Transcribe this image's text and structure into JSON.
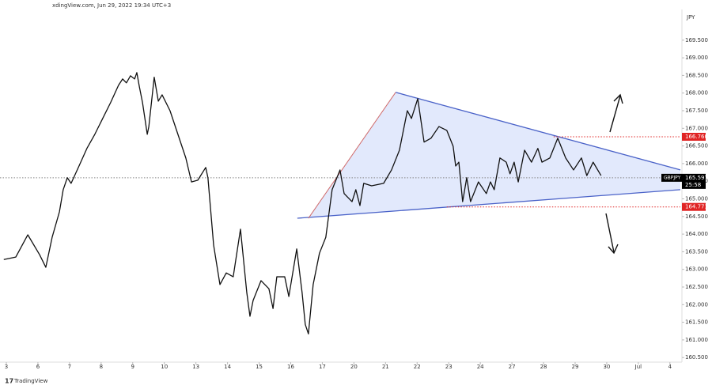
{
  "chart_data": {
    "type": "line",
    "header": "xdingView.com, Jun 29, 2022 19:34 UTC+3",
    "currency": "JPY",
    "brand": "TradingView",
    "xlim": [
      -0.2,
      21.33
    ],
    "xticks": [
      {
        "value": 0,
        "label": "3"
      },
      {
        "value": 1,
        "label": "6"
      },
      {
        "value": 2,
        "label": "7"
      },
      {
        "value": 3,
        "label": "8"
      },
      {
        "value": 4,
        "label": "9"
      },
      {
        "value": 5,
        "label": "10"
      },
      {
        "value": 6,
        "label": "13"
      },
      {
        "value": 7,
        "label": "14"
      },
      {
        "value": 8,
        "label": "15"
      },
      {
        "value": 9,
        "label": "16"
      },
      {
        "value": 10,
        "label": "17"
      },
      {
        "value": 11,
        "label": "20"
      },
      {
        "value": 12,
        "label": "21"
      },
      {
        "value": 13,
        "label": "22"
      },
      {
        "value": 14,
        "label": "23"
      },
      {
        "value": 15,
        "label": "24"
      },
      {
        "value": 16,
        "label": "27"
      },
      {
        "value": 17,
        "label": "28"
      },
      {
        "value": 18,
        "label": "29"
      },
      {
        "value": 19,
        "label": "30"
      },
      {
        "value": 20,
        "label": "Jul"
      },
      {
        "value": 21,
        "label": "4"
      }
    ],
    "ylim": [
      160.37,
      170.37
    ],
    "yticks": [
      {
        "value": 160.5,
        "label": "160.500"
      },
      {
        "value": 161,
        "label": "161.000"
      },
      {
        "value": 161.5,
        "label": "161.500"
      },
      {
        "value": 162,
        "label": "162.000"
      },
      {
        "value": 162.5,
        "label": "162.500"
      },
      {
        "value": 163,
        "label": "163.000"
      },
      {
        "value": 163.5,
        "label": "163.500"
      },
      {
        "value": 164,
        "label": "164.000"
      },
      {
        "value": 164.5,
        "label": "164.500"
      },
      {
        "value": 165,
        "label": "165.000"
      },
      {
        "value": 165.5,
        "label": "165.500"
      },
      {
        "value": 166,
        "label": "166.000"
      },
      {
        "value": 166.5,
        "label": "166.500"
      },
      {
        "value": 167,
        "label": "167.000"
      },
      {
        "value": 167.5,
        "label": "167.500"
      },
      {
        "value": 168,
        "label": "168.000"
      },
      {
        "value": 168.5,
        "label": "168.500"
      },
      {
        "value": 169,
        "label": "169.000"
      },
      {
        "value": 169.5,
        "label": "169.500"
      }
    ],
    "series": [
      {
        "name": "GBPJPY",
        "color": "#111111",
        "x": [
          -0.08,
          0.3,
          0.68,
          1.05,
          1.25,
          1.45,
          1.68,
          1.8,
          1.93,
          2.05,
          2.3,
          2.55,
          2.8,
          3.05,
          3.3,
          3.55,
          3.68,
          3.8,
          3.93,
          4.06,
          4.13,
          4.21,
          4.31,
          4.46,
          4.51,
          4.68,
          4.81,
          4.93,
          5.18,
          5.43,
          5.68,
          5.86,
          6.06,
          6.31,
          6.38,
          6.56,
          6.76,
          6.96,
          7.18,
          7.41,
          7.61,
          7.71,
          7.81,
          8.06,
          8.31,
          8.44,
          8.56,
          8.81,
          8.94,
          9.19,
          9.36,
          9.46,
          9.56,
          9.71,
          9.91,
          10.11,
          10.31,
          10.56,
          10.69,
          10.94,
          11.06,
          11.19,
          11.31,
          11.56,
          11.94,
          12.19,
          12.44,
          12.69,
          12.82,
          13.02,
          13.22,
          13.44,
          13.69,
          13.94,
          14.14,
          14.22,
          14.32,
          14.44,
          14.57,
          14.69,
          14.94,
          15.19,
          15.32,
          15.44,
          15.62,
          15.82,
          15.94,
          16.07,
          16.2,
          16.4,
          16.62,
          16.82,
          16.95,
          17.2,
          17.45,
          17.7,
          17.95,
          18.2,
          18.37,
          18.57,
          18.82
        ],
        "values": [
          163.28,
          163.35,
          163.98,
          163.42,
          163.06,
          163.91,
          164.63,
          165.26,
          165.6,
          165.44,
          165.93,
          166.43,
          166.83,
          167.28,
          167.73,
          168.22,
          168.4,
          168.29,
          168.49,
          168.4,
          168.58,
          168.18,
          167.73,
          166.83,
          167.05,
          168.45,
          167.77,
          167.95,
          167.5,
          166.83,
          166.16,
          165.48,
          165.53,
          165.89,
          165.6,
          163.69,
          162.57,
          162.9,
          162.79,
          164.14,
          162.34,
          161.67,
          162.12,
          162.68,
          162.45,
          161.89,
          162.79,
          162.79,
          162.23,
          163.58,
          162.34,
          161.44,
          161.17,
          162.57,
          163.46,
          163.91,
          165.26,
          165.82,
          165.15,
          164.92,
          165.26,
          164.81,
          165.44,
          165.37,
          165.44,
          165.82,
          166.38,
          167.5,
          167.28,
          167.84,
          166.61,
          166.72,
          167.05,
          166.94,
          166.49,
          165.93,
          166.04,
          164.92,
          165.6,
          164.92,
          165.48,
          165.15,
          165.48,
          165.26,
          166.16,
          166.04,
          165.71,
          166.04,
          165.48,
          166.38,
          166.04,
          166.43,
          166.04,
          166.16,
          166.72,
          166.16,
          165.82,
          166.16,
          165.66,
          166.04,
          165.66
        ]
      }
    ],
    "triangle": {
      "fill": "#dbe3fb",
      "upper": {
        "color": "#4a62c8",
        "x": [
          12.32,
          21.33
        ],
        "values": [
          168.02,
          165.82
        ]
      },
      "lower": {
        "color": "#4a62c8",
        "x": [
          9.21,
          21.33
        ],
        "values": [
          164.45,
          165.26
        ]
      },
      "left": {
        "color": "#d06a6a",
        "x": [
          9.56,
          12.32
        ],
        "values": [
          164.45,
          168.02
        ]
      }
    },
    "levels": [
      {
        "value": 166.76,
        "label": "166.760",
        "color": "#e02424",
        "x_start": 17.32
      },
      {
        "value": 164.771,
        "label": "164.771",
        "color": "#e02424",
        "x_start": 13.94
      }
    ],
    "last_price": {
      "symbol": "GBPJPY",
      "value": 165.597,
      "label": "165.597",
      "countdown": "25:58",
      "color": "#000000"
    }
  }
}
